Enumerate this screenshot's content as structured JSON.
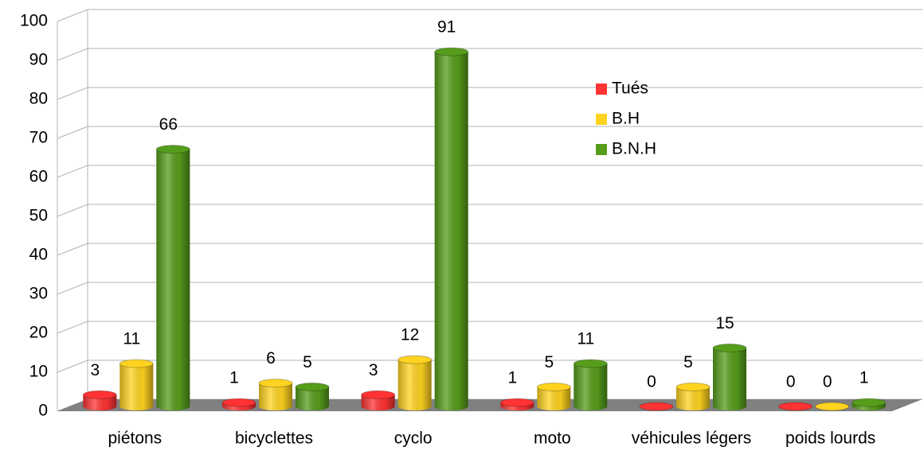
{
  "chart_data": {
    "type": "bar3d",
    "categories": [
      "piétons",
      "bicyclettes",
      "cyclo",
      "moto",
      "véhicules légers",
      "poids lourds"
    ],
    "series": [
      {
        "name": "Tués",
        "color": "#ff3333",
        "values": [
          3,
          1,
          3,
          1,
          0,
          0
        ]
      },
      {
        "name": "B.H",
        "color": "#ffd320",
        "values": [
          11,
          6,
          12,
          5,
          5,
          0
        ]
      },
      {
        "name": "B.N.H",
        "color": "#579d1c",
        "values": [
          66,
          5,
          91,
          11,
          15,
          1
        ]
      }
    ],
    "ylim": [
      0,
      100
    ],
    "yticks": [
      0,
      10,
      20,
      30,
      40,
      50,
      60,
      70,
      80,
      90,
      100
    ],
    "grid": true,
    "legend": "upper right"
  }
}
